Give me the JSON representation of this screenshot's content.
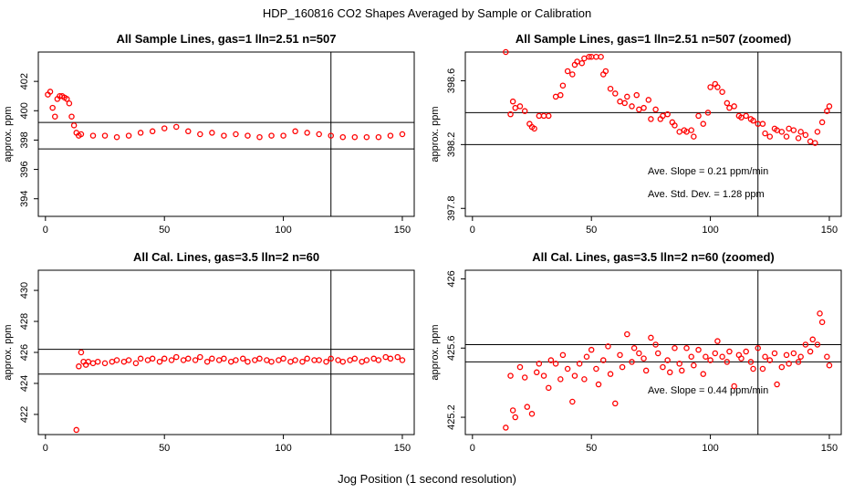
{
  "figure": {
    "title": "HDP_160816  CO2 Shapes Averaged by Sample or Calibration",
    "xlabel": "Jog Position (1 second resolution)"
  },
  "colors": {
    "points": "#ff0000",
    "axes": "#000000",
    "background": "#ffffff"
  },
  "chart_data": [
    {
      "type": "scatter",
      "title": "All Sample Lines, gas=1 lln=2.51 n=507",
      "ylabel": "approx. ppm",
      "xlim": [
        -3,
        155
      ],
      "ylim": [
        392.8,
        404.0
      ],
      "xticks": [
        0,
        50,
        100,
        150
      ],
      "yticks": [
        394,
        396,
        398,
        400,
        402
      ],
      "hlines": [
        399.2,
        397.4
      ],
      "vlines": [
        120
      ],
      "annotations": [],
      "series": [
        {
          "x": [
            1,
            2,
            3,
            4,
            5,
            6,
            7,
            8,
            9,
            10,
            11,
            12,
            13,
            14,
            15,
            20,
            25,
            30,
            35,
            40,
            45,
            50,
            55,
            60,
            65,
            70,
            75,
            80,
            85,
            90,
            95,
            100,
            105,
            110,
            115,
            120,
            125,
            130,
            135,
            140,
            145,
            150
          ],
          "values": [
            401.1,
            401.3,
            400.2,
            399.6,
            400.8,
            401.0,
            401.0,
            400.9,
            400.8,
            400.5,
            399.6,
            399.0,
            398.5,
            398.3,
            398.4,
            398.3,
            398.3,
            398.2,
            398.3,
            398.5,
            398.6,
            398.8,
            398.9,
            398.6,
            398.4,
            398.5,
            398.3,
            398.4,
            398.3,
            398.2,
            398.3,
            398.3,
            398.6,
            398.5,
            398.4,
            398.3,
            398.2,
            398.2,
            398.2,
            398.2,
            398.3,
            398.4
          ]
        }
      ]
    },
    {
      "type": "scatter",
      "title": "All Sample Lines, gas=1 lln=2.51 n=507 (zoomed)",
      "ylabel": "approx. ppm",
      "xlim": [
        -3,
        155
      ],
      "ylim": [
        397.75,
        398.78
      ],
      "xticks": [
        0,
        50,
        100,
        150
      ],
      "yticks": [
        397.8,
        398.2,
        398.6
      ],
      "hlines": [
        398.4,
        398.2
      ],
      "vlines": [
        120
      ],
      "annotations": [
        "Ave. Slope =  0.21  ppm/min",
        "Ave. Std. Dev. =  1.28  ppm"
      ],
      "series": [
        {
          "x": [
            14,
            16,
            17,
            18,
            20,
            22,
            24,
            25,
            26,
            28,
            30,
            32,
            35,
            37,
            38,
            40,
            42,
            43,
            44,
            46,
            47,
            49,
            50,
            52,
            54,
            55,
            56,
            58,
            60,
            62,
            64,
            65,
            67,
            69,
            70,
            72,
            74,
            75,
            77,
            79,
            80,
            82,
            84,
            85,
            87,
            89,
            90,
            92,
            93,
            95,
            97,
            99,
            100,
            102,
            103,
            105,
            107,
            108,
            110,
            112,
            113,
            115,
            117,
            118,
            120,
            122,
            123,
            125,
            127,
            128,
            130,
            132,
            133,
            135,
            137,
            138,
            140,
            142,
            144,
            145,
            147,
            149,
            150
          ],
          "values": [
            398.78,
            398.39,
            398.47,
            398.43,
            398.44,
            398.41,
            398.33,
            398.31,
            398.3,
            398.38,
            398.38,
            398.38,
            398.5,
            398.51,
            398.57,
            398.66,
            398.64,
            398.7,
            398.72,
            398.71,
            398.74,
            398.75,
            398.75,
            398.75,
            398.75,
            398.64,
            398.66,
            398.55,
            398.52,
            398.47,
            398.46,
            398.5,
            398.44,
            398.51,
            398.42,
            398.43,
            398.48,
            398.36,
            398.42,
            398.36,
            398.38,
            398.39,
            398.34,
            398.32,
            398.28,
            398.29,
            398.28,
            398.29,
            398.25,
            398.38,
            398.33,
            398.4,
            398.56,
            398.58,
            398.56,
            398.53,
            398.46,
            398.43,
            398.44,
            398.38,
            398.37,
            398.38,
            398.36,
            398.35,
            398.33,
            398.33,
            398.27,
            398.25,
            398.3,
            398.29,
            398.28,
            398.25,
            398.3,
            398.29,
            398.24,
            398.28,
            398.26,
            398.22,
            398.21,
            398.28,
            398.34,
            398.41,
            398.44
          ]
        }
      ]
    },
    {
      "type": "scatter",
      "title": "All Cal. Lines, gas=3.5 lln=2 n=60",
      "ylabel": "approx. ppm",
      "xlim": [
        -3,
        155
      ],
      "ylim": [
        420.7,
        431.3
      ],
      "xticks": [
        0,
        50,
        100,
        150
      ],
      "yticks": [
        422,
        424,
        426,
        428,
        430
      ],
      "hlines": [
        426.2,
        424.6
      ],
      "vlines": [
        120
      ],
      "annotations": [],
      "series": [
        {
          "x": [
            13,
            14,
            15,
            16,
            17,
            18,
            20,
            22,
            25,
            28,
            30,
            33,
            35,
            38,
            40,
            43,
            45,
            48,
            50,
            53,
            55,
            58,
            60,
            63,
            65,
            68,
            70,
            73,
            75,
            78,
            80,
            83,
            85,
            88,
            90,
            93,
            95,
            98,
            100,
            103,
            105,
            108,
            110,
            113,
            115,
            118,
            120,
            123,
            125,
            128,
            130,
            133,
            135,
            138,
            140,
            143,
            145,
            148,
            150
          ],
          "values": [
            421.0,
            425.1,
            426.0,
            425.4,
            425.2,
            425.4,
            425.3,
            425.4,
            425.3,
            425.4,
            425.5,
            425.4,
            425.5,
            425.3,
            425.6,
            425.5,
            425.6,
            425.4,
            425.6,
            425.5,
            425.7,
            425.5,
            425.6,
            425.5,
            425.7,
            425.4,
            425.6,
            425.5,
            425.6,
            425.4,
            425.5,
            425.6,
            425.4,
            425.5,
            425.6,
            425.5,
            425.4,
            425.5,
            425.6,
            425.4,
            425.5,
            425.4,
            425.6,
            425.5,
            425.5,
            425.4,
            425.6,
            425.5,
            425.4,
            425.5,
            425.6,
            425.4,
            425.5,
            425.6,
            425.5,
            425.7,
            425.6,
            425.7,
            425.5
          ]
        }
      ]
    },
    {
      "type": "scatter",
      "title": "All Cal. Lines, gas=3.5 lln=2 n=60 (zoomed)",
      "ylabel": "approx. ppm",
      "xlim": [
        -3,
        155
      ],
      "ylim": [
        425.1,
        426.05
      ],
      "xticks": [
        0,
        50,
        100,
        150
      ],
      "yticks": [
        425.2,
        425.6,
        426.0
      ],
      "hlines": [
        425.62,
        425.52
      ],
      "vlines": [
        120
      ],
      "annotations": [
        "Ave. Slope =  0.44  ppm/min"
      ],
      "series": [
        {
          "x": [
            14,
            16,
            17,
            18,
            20,
            22,
            23,
            25,
            27,
            28,
            30,
            32,
            33,
            35,
            37,
            38,
            40,
            42,
            43,
            45,
            47,
            48,
            50,
            52,
            53,
            55,
            57,
            58,
            60,
            62,
            63,
            65,
            67,
            68,
            70,
            72,
            73,
            75,
            77,
            78,
            80,
            82,
            83,
            85,
            87,
            88,
            90,
            92,
            93,
            95,
            97,
            98,
            100,
            102,
            103,
            105,
            107,
            108,
            110,
            112,
            113,
            115,
            117,
            118,
            120,
            122,
            123,
            125,
            127,
            128,
            130,
            132,
            133,
            135,
            137,
            138,
            140,
            142,
            143,
            145,
            146,
            147,
            149,
            150
          ],
          "values": [
            425.14,
            425.44,
            425.24,
            425.2,
            425.49,
            425.43,
            425.26,
            425.22,
            425.46,
            425.51,
            425.44,
            425.37,
            425.53,
            425.51,
            425.42,
            425.56,
            425.48,
            425.29,
            425.44,
            425.51,
            425.42,
            425.55,
            425.59,
            425.48,
            425.39,
            425.53,
            425.61,
            425.45,
            425.28,
            425.56,
            425.49,
            425.68,
            425.52,
            425.6,
            425.57,
            425.54,
            425.47,
            425.66,
            425.62,
            425.57,
            425.49,
            425.53,
            425.46,
            425.6,
            425.51,
            425.47,
            425.6,
            425.55,
            425.5,
            425.59,
            425.45,
            425.55,
            425.53,
            425.57,
            425.64,
            425.55,
            425.52,
            425.58,
            425.38,
            425.56,
            425.54,
            425.58,
            425.52,
            425.48,
            425.6,
            425.48,
            425.55,
            425.53,
            425.57,
            425.39,
            425.49,
            425.56,
            425.51,
            425.57,
            425.52,
            425.55,
            425.62,
            425.58,
            425.65,
            425.62,
            425.8,
            425.75,
            425.55,
            425.5
          ]
        }
      ]
    }
  ]
}
